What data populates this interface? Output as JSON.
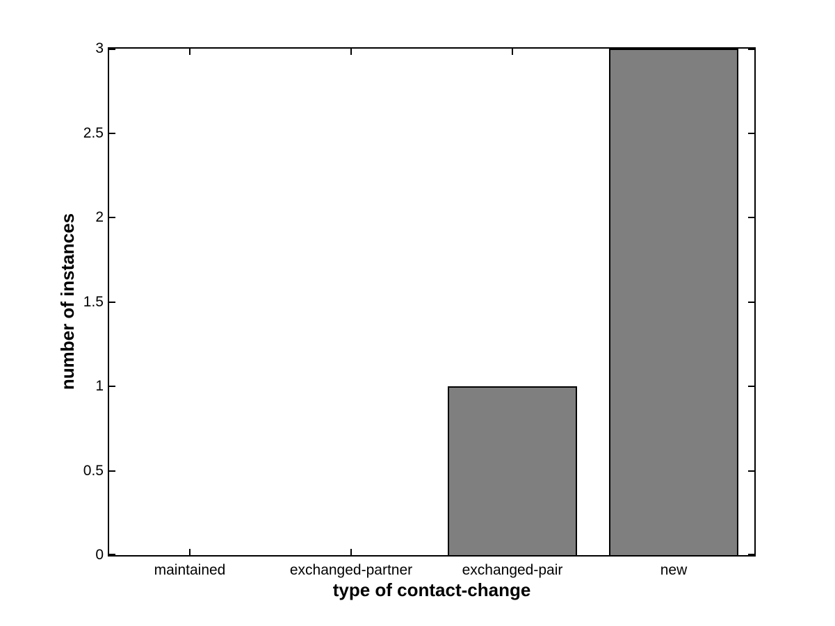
{
  "chart_data": {
    "type": "bar",
    "categories": [
      "maintained",
      "exchanged-partner",
      "exchanged-pair",
      "new"
    ],
    "values": [
      0,
      0,
      1,
      3
    ],
    "title": "",
    "xlabel": "type of contact-change",
    "ylabel": "number of instances",
    "ylim": [
      0,
      3
    ],
    "xlim_category_units": [
      0.5,
      4.5
    ],
    "yticks": [
      0,
      0.5,
      1,
      1.5,
      2,
      2.5,
      3
    ],
    "ytick_labels": [
      "0",
      "0.5",
      "1",
      "1.5",
      "2",
      "2.5",
      "3"
    ],
    "bar_width_fraction": 0.8,
    "bar_fill_color": "#7f7f7f",
    "bar_edge_color": "#000000",
    "axis_color": "#000000",
    "background_color": "#ffffff",
    "grid": false,
    "legend": null,
    "tick_direction": "in",
    "box": true
  }
}
